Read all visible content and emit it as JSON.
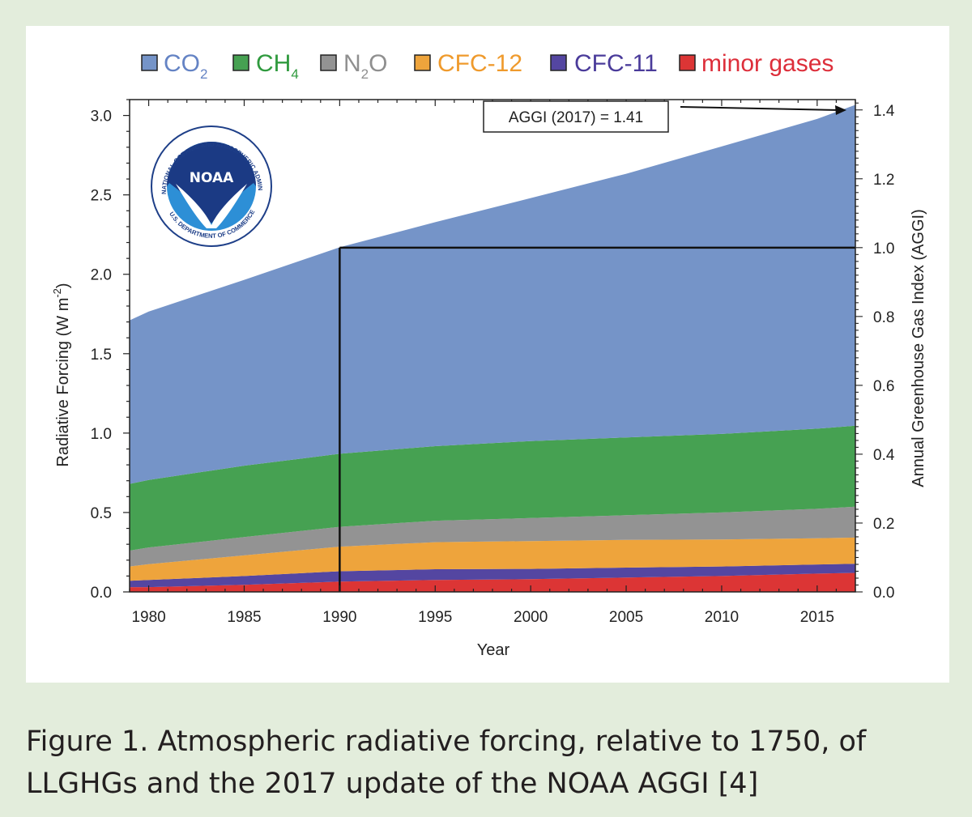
{
  "caption": {
    "line1": "Figure 1. Atmospheric radiative forcing, relative to 1750, of",
    "line2": "LLGHGs and the 2017 update of the NOAA AGGI [4]"
  },
  "logo": {
    "name": "NOAA",
    "ring_text": "NATIONAL OCEANIC AND ATMOSPHERIC ADMINISTRATION",
    "bottom_text": "U.S. DEPARTMENT OF COMMERCE"
  },
  "colors": {
    "CO2": "#7594c8",
    "CH4": "#46a152",
    "N2O": "#939393",
    "CFC-12": "#eea43c",
    "CFC-11": "#5446a1",
    "minor": "#dc3535",
    "co2_label": "#6483c4",
    "ch4_label": "#2f9a3e",
    "n2o_label": "#8f8f8f",
    "cfc12_label": "#ef9a2c",
    "cfc11_label": "#4a3b9a",
    "minor_label": "#dd2e3a"
  },
  "chart_data": {
    "type": "area",
    "stacked": true,
    "xlabel": "Year",
    "ylabel": "Radiative Forcing (W m-2)",
    "ylabel_main": "Radiative Forcing (W m",
    "ylabel_exp": "-2",
    "ylabel_close": ")",
    "y2label": "Annual Greenhouse Gas Index (AGGI)",
    "xlim": [
      1979,
      2017
    ],
    "ylim": [
      0,
      3.1
    ],
    "y2lim": [
      0,
      1.43
    ],
    "x_ticks": [
      "1980",
      "1985",
      "1990",
      "1995",
      "2000",
      "2005",
      "2010",
      "2015"
    ],
    "y_ticks": [
      "0.0",
      "0.5",
      "1.0",
      "1.5",
      "2.0",
      "2.5",
      "3.0"
    ],
    "y2_ticks": [
      "0.0",
      "0.2",
      "0.4",
      "0.6",
      "0.8",
      "1.0",
      "1.2",
      "1.4"
    ],
    "x": [
      1979,
      1980,
      1985,
      1990,
      1995,
      2000,
      2005,
      2010,
      2015,
      2017
    ],
    "series": [
      {
        "name": "minor gases",
        "key": "minor",
        "label": "minor gases",
        "values": [
          0.03,
          0.03,
          0.045,
          0.065,
          0.075,
          0.08,
          0.09,
          0.1,
          0.115,
          0.12
        ]
      },
      {
        "name": "CFC-11",
        "key": "CFC-11",
        "label": "CFC-11",
        "values": [
          0.04,
          0.045,
          0.055,
          0.065,
          0.068,
          0.065,
          0.063,
          0.06,
          0.058,
          0.057
        ]
      },
      {
        "name": "CFC-12",
        "key": "CFC-12",
        "label": "CFC-12",
        "values": [
          0.09,
          0.1,
          0.13,
          0.155,
          0.17,
          0.175,
          0.175,
          0.17,
          0.165,
          0.165
        ]
      },
      {
        "name": "N2O",
        "key": "N2O",
        "label_main": "N",
        "label_sub": "2",
        "label_tail": "O",
        "values": [
          0.1,
          0.105,
          0.115,
          0.125,
          0.135,
          0.145,
          0.155,
          0.17,
          0.185,
          0.195
        ]
      },
      {
        "name": "CH4",
        "key": "CH4",
        "label_main": "CH",
        "label_sub": "4",
        "values": [
          0.42,
          0.425,
          0.45,
          0.46,
          0.47,
          0.485,
          0.49,
          0.495,
          0.505,
          0.51
        ]
      },
      {
        "name": "CO2",
        "key": "CO2",
        "label_main": "CO",
        "label_sub": "2",
        "values": [
          1.03,
          1.06,
          1.17,
          1.3,
          1.41,
          1.53,
          1.66,
          1.81,
          1.95,
          2.02
        ]
      }
    ],
    "legend_order": [
      "CO2",
      "CH4",
      "N2O",
      "CFC-12",
      "CFC-11",
      "minor"
    ],
    "reference": {
      "year": 1990,
      "aggi": 1.0
    },
    "annotation": {
      "text": "AGGI (2017) = 1.41",
      "year": 2017,
      "aggi": 1.41
    }
  }
}
